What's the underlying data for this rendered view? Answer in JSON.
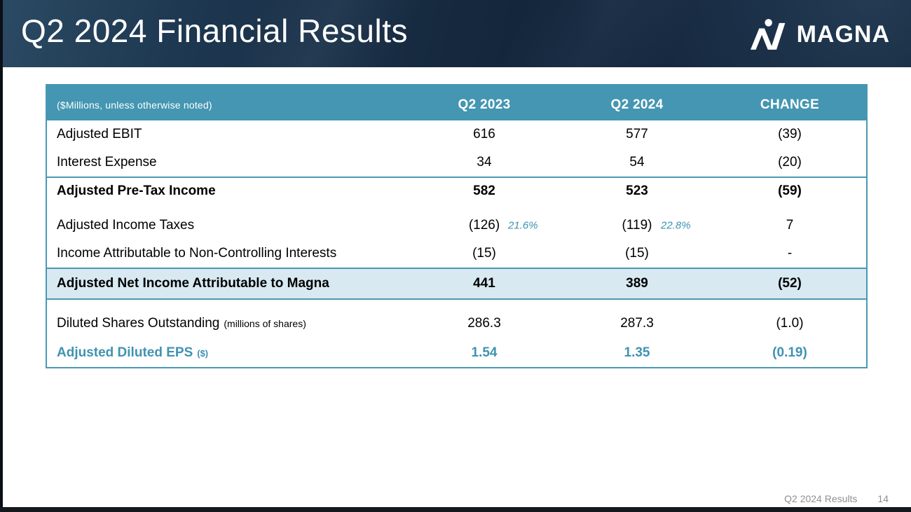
{
  "slide": {
    "title": "Q2 2024 Financial Results",
    "logo_text": "MAGNA",
    "footer": {
      "label": "Q2 2024 Results",
      "page_number": "14"
    }
  },
  "colors": {
    "table_header_bg": "#4496b2",
    "teal_border": "#4a98b4",
    "highlight_row_bg": "#d8e9f2",
    "accent_teal": "#3f93b0",
    "banner_navy": "#16293f",
    "footer_gray": "#8f8f8f"
  },
  "table": {
    "units_note": "($Millions, unless otherwise noted)",
    "columns": [
      "Q2 2023",
      "Q2 2024",
      "CHANGE"
    ],
    "rows": [
      {
        "label": "Adjusted EBIT",
        "cells": [
          {
            "text": "616"
          },
          {
            "text": "577"
          },
          {
            "text": "(39)"
          }
        ],
        "emphasis": "normal"
      },
      {
        "label": "Interest Expense",
        "cells": [
          {
            "text": "34"
          },
          {
            "text": "54"
          },
          {
            "text": "(20)"
          }
        ],
        "emphasis": "normal"
      },
      {
        "label": "Adjusted Pre-Tax Income",
        "cells": [
          {
            "text": "582"
          },
          {
            "text": "523"
          },
          {
            "text": "(59)"
          }
        ],
        "emphasis": "bold",
        "rule_above": true,
        "gap_after": "sm"
      },
      {
        "label": "Adjusted Income Taxes",
        "cells": [
          {
            "text": "(126)",
            "note": "21.6%"
          },
          {
            "text": "(119)",
            "note": "22.8%"
          },
          {
            "text": "7"
          }
        ],
        "emphasis": "normal"
      },
      {
        "label": "Income Attributable to Non-Controlling Interests",
        "cells": [
          {
            "text": "(15)"
          },
          {
            "text": "(15)"
          },
          {
            "text": "-"
          }
        ],
        "emphasis": "normal"
      },
      {
        "label": "Adjusted Net Income Attributable to Magna",
        "cells": [
          {
            "text": "441"
          },
          {
            "text": "389"
          },
          {
            "text": "(52)"
          }
        ],
        "emphasis": "highlight",
        "gap_after": "lg"
      },
      {
        "label": "Diluted Shares Outstanding",
        "label_note": "(millions of shares)",
        "cells": [
          {
            "text": "286.3"
          },
          {
            "text": "287.3"
          },
          {
            "text": "(1.0)"
          }
        ],
        "emphasis": "normal",
        "tall": true
      },
      {
        "label": "Adjusted Diluted EPS",
        "label_note": "($)",
        "cells": [
          {
            "text": "1.54"
          },
          {
            "text": "1.35"
          },
          {
            "text": "(0.19)"
          }
        ],
        "emphasis": "teal"
      }
    ]
  }
}
